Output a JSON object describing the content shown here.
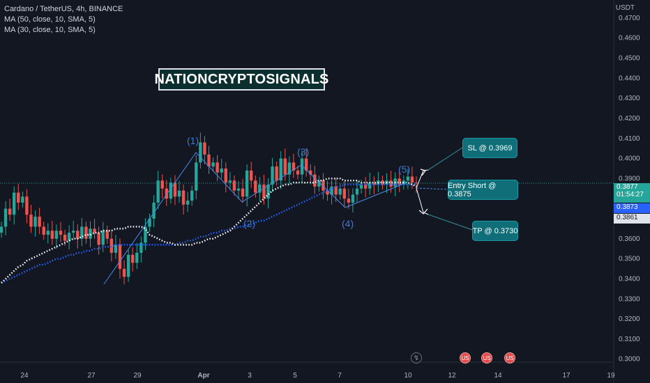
{
  "legend": {
    "title": "Cardano / TetherUS, 4h, BINANCE",
    "ma1": "MA (50, close, 10, SMA, 5)",
    "ma2": "MA (30, close, 10, SMA, 5)"
  },
  "badge_text": "NATIONCRYPTOSIGNALS",
  "notes": {
    "sl": "SL @ 0.3969",
    "entry": "Entry Short @ 0.3875",
    "tp": "TP @ 0.3730"
  },
  "wave_labels": [
    "(1)",
    "(2)",
    "(3)",
    "(4)",
    "(5)"
  ],
  "price_axis": {
    "unit": "USDT",
    "current_price": "0.3877",
    "countdown": "01:54:27",
    "ma_blue_value": "0.3873",
    "ma_white_value": "0.3861"
  },
  "event_icons": [
    "flash-icon",
    "us-flag-icon",
    "us-flag-icon",
    "us-flag-icon"
  ],
  "colors": {
    "up": "#26a69a",
    "down": "#ef5350",
    "ma_white": "#ffffff",
    "ma_blue": "#2962ff",
    "wave": "#3d7ad6",
    "note": "#0f6e78"
  },
  "chart_data": {
    "type": "candlestick",
    "y_ticks": [
      "0.4700",
      "0.4600",
      "0.4500",
      "0.4400",
      "0.4300",
      "0.4200",
      "0.4100",
      "0.4000",
      "0.3900",
      "0.3800",
      "0.3700",
      "0.3600",
      "0.3500",
      "0.3400",
      "0.3300",
      "0.3200",
      "0.3100",
      "0.3000"
    ],
    "ylim": [
      0.2985,
      0.479
    ],
    "x_ticks": [
      "24",
      "27",
      "29",
      "Apr",
      "3",
      "5",
      "7",
      "10",
      "12",
      "14",
      "17",
      "19"
    ],
    "closes": [
      0.366,
      0.375,
      0.372,
      0.383,
      0.378,
      0.381,
      0.372,
      0.366,
      0.371,
      0.366,
      0.362,
      0.364,
      0.36,
      0.364,
      0.362,
      0.359,
      0.363,
      0.364,
      0.36,
      0.366,
      0.36,
      0.365,
      0.363,
      0.357,
      0.364,
      0.36,
      0.353,
      0.357,
      0.345,
      0.341,
      0.352,
      0.348,
      0.353,
      0.358,
      0.366,
      0.37,
      0.378,
      0.389,
      0.385,
      0.38,
      0.388,
      0.381,
      0.384,
      0.377,
      0.379,
      0.384,
      0.398,
      0.408,
      0.402,
      0.396,
      0.398,
      0.393,
      0.395,
      0.388,
      0.389,
      0.384,
      0.385,
      0.381,
      0.394,
      0.389,
      0.383,
      0.387,
      0.38,
      0.387,
      0.396,
      0.389,
      0.4,
      0.392,
      0.398,
      0.394,
      0.392,
      0.4,
      0.394,
      0.392,
      0.386,
      0.389,
      0.384,
      0.382,
      0.386,
      0.382,
      0.385,
      0.38,
      0.378,
      0.382,
      0.385,
      0.387,
      0.385,
      0.388,
      0.387,
      0.389,
      0.387,
      0.389,
      0.386,
      0.39,
      0.387,
      0.389,
      0.391,
      0.388,
      0.3877
    ],
    "ma_white": [
      0.338,
      0.34,
      0.342,
      0.344,
      0.346,
      0.347,
      0.349,
      0.35,
      0.351,
      0.352,
      0.353,
      0.354,
      0.355,
      0.356,
      0.357,
      0.358,
      0.359,
      0.36,
      0.36,
      0.361,
      0.362,
      0.362,
      0.363,
      0.363,
      0.364,
      0.364,
      0.364,
      0.365,
      0.365,
      0.365,
      0.366,
      0.366,
      0.366,
      0.366,
      0.365,
      0.362,
      0.361,
      0.36,
      0.359,
      0.358,
      0.358,
      0.357,
      0.357,
      0.357,
      0.357,
      0.357,
      0.358,
      0.358,
      0.359,
      0.36,
      0.36,
      0.361,
      0.362,
      0.363,
      0.364,
      0.366,
      0.368,
      0.37,
      0.372,
      0.374,
      0.376,
      0.378,
      0.38,
      0.382,
      0.384,
      0.385,
      0.386,
      0.387,
      0.387,
      0.388,
      0.388,
      0.388,
      0.388,
      0.388,
      0.388,
      0.389,
      0.389,
      0.39,
      0.39,
      0.39,
      0.39,
      0.389,
      0.389,
      0.389,
      0.389,
      0.388,
      0.388,
      0.388,
      0.388,
      0.388,
      0.388,
      0.388,
      0.388,
      0.388,
      0.388,
      0.388,
      0.388,
      0.387,
      0.3861
    ],
    "ma_blue": [
      0.338,
      0.339,
      0.34,
      0.341,
      0.342,
      0.343,
      0.344,
      0.345,
      0.346,
      0.347,
      0.347,
      0.348,
      0.349,
      0.35,
      0.35,
      0.351,
      0.352,
      0.352,
      0.353,
      0.353,
      0.354,
      0.354,
      0.355,
      0.355,
      0.356,
      0.356,
      0.356,
      0.357,
      0.357,
      0.357,
      0.357,
      0.357,
      0.357,
      0.357,
      0.357,
      0.357,
      0.357,
      0.357,
      0.357,
      0.357,
      0.357,
      0.357,
      0.358,
      0.358,
      0.359,
      0.359,
      0.36,
      0.361,
      0.361,
      0.362,
      0.363,
      0.363,
      0.364,
      0.364,
      0.365,
      0.365,
      0.366,
      0.366,
      0.367,
      0.367,
      0.368,
      0.369,
      0.369,
      0.37,
      0.371,
      0.372,
      0.373,
      0.374,
      0.375,
      0.376,
      0.377,
      0.378,
      0.379,
      0.38,
      0.381,
      0.382,
      0.383,
      0.384,
      0.385,
      0.386,
      0.386,
      0.387,
      0.387,
      0.387,
      0.387,
      0.387,
      0.387,
      0.387,
      0.387,
      0.387,
      0.387,
      0.387,
      0.387,
      0.387,
      0.387,
      0.387,
      0.387,
      0.387,
      0.3873
    ],
    "wave_points": [
      [
        0.357,
        0.4075
      ],
      [
        0.387,
        0.389
      ],
      [
        0.4,
        0.388
      ],
      [
        0.38,
        0.388
      ],
      [
        0.3905,
        0.3875
      ]
    ],
    "targets": {
      "sl": 0.3969,
      "entry": 0.3875,
      "tp": 0.373
    }
  }
}
